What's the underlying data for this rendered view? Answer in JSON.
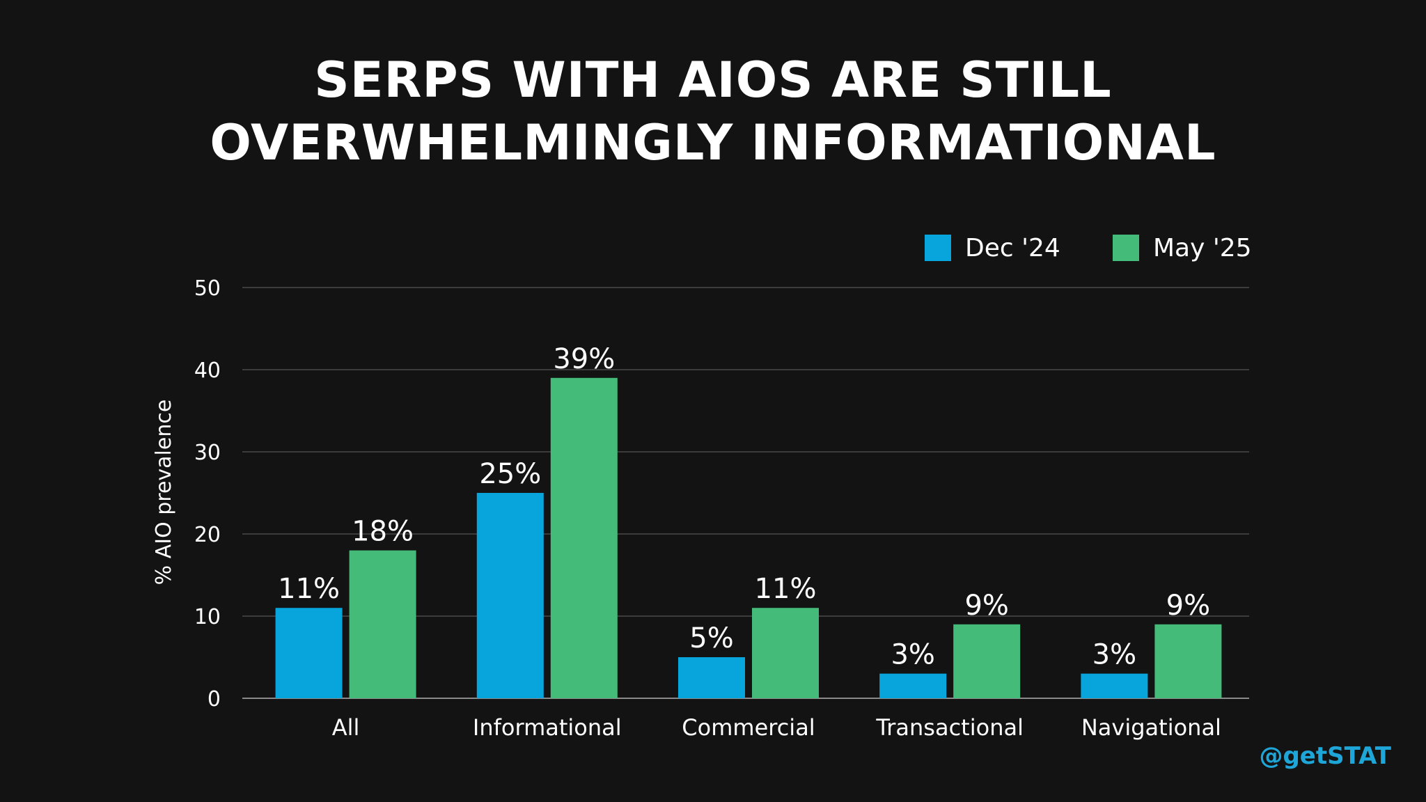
{
  "title_lines": [
    "SERPS WITH AIOS ARE STILL",
    "OVERWHELMINGLY INFORMATIONAL"
  ],
  "handle": "@getSTAT",
  "chart_data": {
    "type": "bar",
    "title": "SERPS WITH AIOS ARE STILL OVERWHELMINGLY INFORMATIONAL",
    "xlabel": "",
    "ylabel": "% AIO prevalence",
    "ylim": [
      0,
      50
    ],
    "yticks": [
      0,
      10,
      20,
      30,
      40,
      50
    ],
    "grid": true,
    "legend_position": "top-right",
    "categories": [
      "All",
      "Informational",
      "Commercial",
      "Transactional",
      "Navigational"
    ],
    "series": [
      {
        "name": "Dec '24",
        "color": "#08a4dc",
        "values": [
          11,
          25,
          5,
          3,
          3
        ],
        "labels": [
          "11%",
          "25%",
          "5%",
          "3%",
          "3%"
        ]
      },
      {
        "name": "May '25",
        "color": "#45bb7a",
        "values": [
          18,
          39,
          11,
          9,
          9
        ],
        "labels": [
          "18%",
          "39%",
          "11%",
          "9%",
          "9%"
        ]
      }
    ]
  }
}
